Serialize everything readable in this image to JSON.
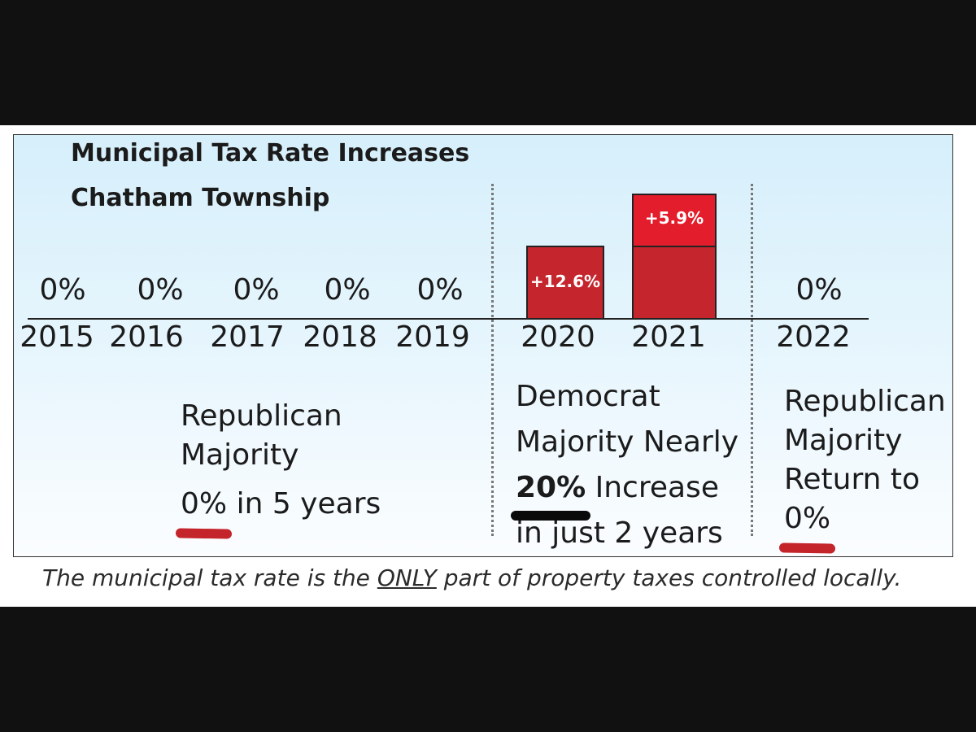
{
  "chart_data": {
    "type": "bar",
    "title": "Municipal Tax Rate Increases",
    "subtitle": "Chatham Township",
    "categories": [
      "2015",
      "2016",
      "2017",
      "2018",
      "2019",
      "2020",
      "2021",
      "2022"
    ],
    "values": [
      0,
      0,
      0,
      0,
      0,
      12.6,
      5.9,
      0
    ],
    "value_labels": [
      "0%",
      "0%",
      "0%",
      "0%",
      "0%",
      "+12.6%",
      "+5.9%",
      "0%"
    ],
    "stacked_2021_base": 12.6,
    "xlabel": "",
    "ylabel": "",
    "grid": false,
    "colors": {
      "bar": "#c5262e",
      "bar_top": "#e31d2b",
      "highlight_red": "#c4252b",
      "highlight_black": "#0a0a0a"
    }
  },
  "annotations": {
    "republican_1": {
      "lines": [
        "Republican",
        "Majority"
      ],
      "pct": "0%",
      "rest": " in 5 years"
    },
    "democrat": {
      "lines": [
        "Democrat",
        "Majority Nearly"
      ],
      "pct": "20%",
      "rest": " Increase",
      "last": "in just 2 years"
    },
    "republican_2": {
      "lines": [
        "Republican",
        "Majority",
        "Return to"
      ],
      "pct": "0%"
    }
  },
  "footer": {
    "before": "The municipal tax rate is the ",
    "emph": "ONLY",
    "after": " part of property taxes controlled locally."
  }
}
